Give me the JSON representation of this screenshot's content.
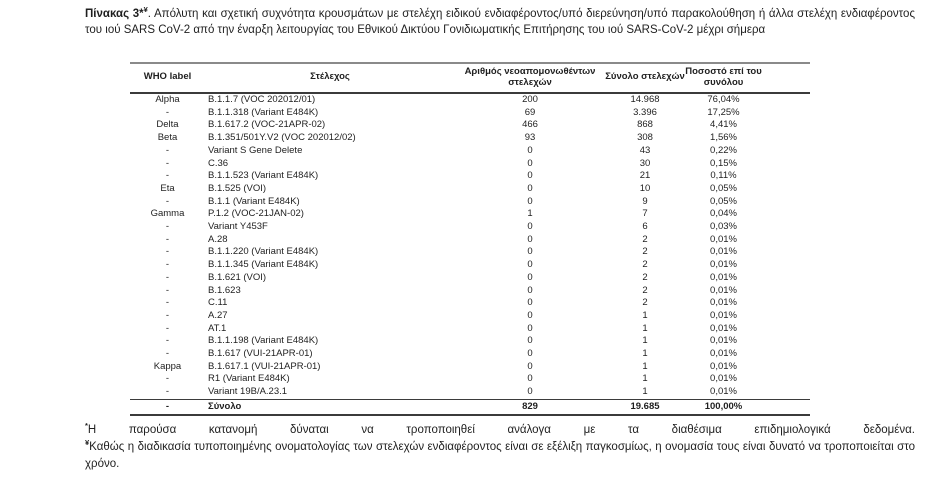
{
  "title": {
    "bold": "Πίνακας 3*",
    "sup": "¥",
    "rest": ". Απόλυτη και σχετική συχνότητα κρουσμάτων με στελέχη ειδικού ενδιαφέροντος/υπό διερεύνηση/υπό παρακολούθηση ή άλλα στελέχη ενδιαφέροντος του ιού SARS CoV-2 από την έναρξη λειτουργίας του Εθνικού Δικτύου Γονιδιωματικής Επιτήρησης του ιού SARS-CoV-2 μέχρι σήμερα"
  },
  "table": {
    "headers": [
      "WHO label",
      "Στέλεχος",
      "Αριθμός νεοαπομονωθέντων στελεχών",
      "Σύνολο στελεχών",
      "Ποσοστό επί του συνόλου"
    ],
    "rows": [
      {
        "who": "Alpha",
        "strain": "B.1.1.7 (VOC 202012/01)",
        "new_isolates": "200",
        "total": "14.968",
        "percent": "76,04%"
      },
      {
        "who": "-",
        "strain": "B.1.1.318 (Variant E484K)",
        "new_isolates": "69",
        "total": "3.396",
        "percent": "17,25%"
      },
      {
        "who": "Delta",
        "strain": "B.1.617.2 (VOC-21APR-02)",
        "new_isolates": "466",
        "total": "868",
        "percent": "4,41%"
      },
      {
        "who": "Beta",
        "strain": "B.1.351/501Y.V2 (VOC 202012/02)",
        "new_isolates": "93",
        "total": "308",
        "percent": "1,56%"
      },
      {
        "who": "-",
        "strain": "Variant S Gene Delete",
        "new_isolates": "0",
        "total": "43",
        "percent": "0,22%"
      },
      {
        "who": "-",
        "strain": "C.36",
        "new_isolates": "0",
        "total": "30",
        "percent": "0,15%"
      },
      {
        "who": "-",
        "strain": "B.1.1.523 (Variant E484K)",
        "new_isolates": "0",
        "total": "21",
        "percent": "0,11%"
      },
      {
        "who": "Eta",
        "strain": "B.1.525 (VOI)",
        "new_isolates": "0",
        "total": "10",
        "percent": "0,05%"
      },
      {
        "who": "-",
        "strain": "B.1.1 (Variant E484K)",
        "new_isolates": "0",
        "total": "9",
        "percent": "0,05%"
      },
      {
        "who": "Gamma",
        "strain": "P.1.2 (VOC-21JAN-02)",
        "new_isolates": "1",
        "total": "7",
        "percent": "0,04%"
      },
      {
        "who": "-",
        "strain": "Variant Y453F",
        "new_isolates": "0",
        "total": "6",
        "percent": "0,03%"
      },
      {
        "who": "-",
        "strain": "A.28",
        "new_isolates": "0",
        "total": "2",
        "percent": "0,01%"
      },
      {
        "who": "-",
        "strain": "B.1.1.220 (Variant E484K)",
        "new_isolates": "0",
        "total": "2",
        "percent": "0,01%"
      },
      {
        "who": "-",
        "strain": "B.1.1.345 (Variant E484K)",
        "new_isolates": "0",
        "total": "2",
        "percent": "0,01%"
      },
      {
        "who": "-",
        "strain": "B.1.621 (VOI)",
        "new_isolates": "0",
        "total": "2",
        "percent": "0,01%"
      },
      {
        "who": "-",
        "strain": "B.1.623",
        "new_isolates": "0",
        "total": "2",
        "percent": "0,01%"
      },
      {
        "who": "-",
        "strain": "C.11",
        "new_isolates": "0",
        "total": "2",
        "percent": "0,01%"
      },
      {
        "who": "-",
        "strain": "A.27",
        "new_isolates": "0",
        "total": "1",
        "percent": "0,01%"
      },
      {
        "who": "-",
        "strain": "AT.1",
        "new_isolates": "0",
        "total": "1",
        "percent": "0,01%"
      },
      {
        "who": "-",
        "strain": "B.1.1.198 (Variant E484K)",
        "new_isolates": "0",
        "total": "1",
        "percent": "0,01%"
      },
      {
        "who": "-",
        "strain": "B.1.617 (VUI-21APR-01)",
        "new_isolates": "0",
        "total": "1",
        "percent": "0,01%"
      },
      {
        "who": "Kappa",
        "strain": "B.1.617.1 (VUI-21APR-01)",
        "new_isolates": "0",
        "total": "1",
        "percent": "0,01%"
      },
      {
        "who": "-",
        "strain": "R1 (Variant E484K)",
        "new_isolates": "0",
        "total": "1",
        "percent": "0,01%"
      },
      {
        "who": "-",
        "strain": "Variant 19B/A.23.1",
        "new_isolates": "0",
        "total": "1",
        "percent": "0,01%"
      }
    ],
    "total_row": {
      "who": "-",
      "strain": "Σύνολο",
      "new_isolates": "829",
      "total": "19.685",
      "percent": "100,00%"
    }
  },
  "footnotes": [
    {
      "marker": "*",
      "text": "Η παρούσα κατανομή δύναται να τροποποιηθεί ανάλογα με τα διαθέσιμα επιδημιολογικά δεδομένα."
    },
    {
      "marker": "¥",
      "text": "Καθώς η διαδικασία τυποποιημένης ονοματολογίας των στελεχών ενδιαφέροντος είναι σε εξέλιξη παγκοσμίως, η ονομασία τους είναι δυνατό να τροποποιείται στο χρόνο."
    }
  ]
}
